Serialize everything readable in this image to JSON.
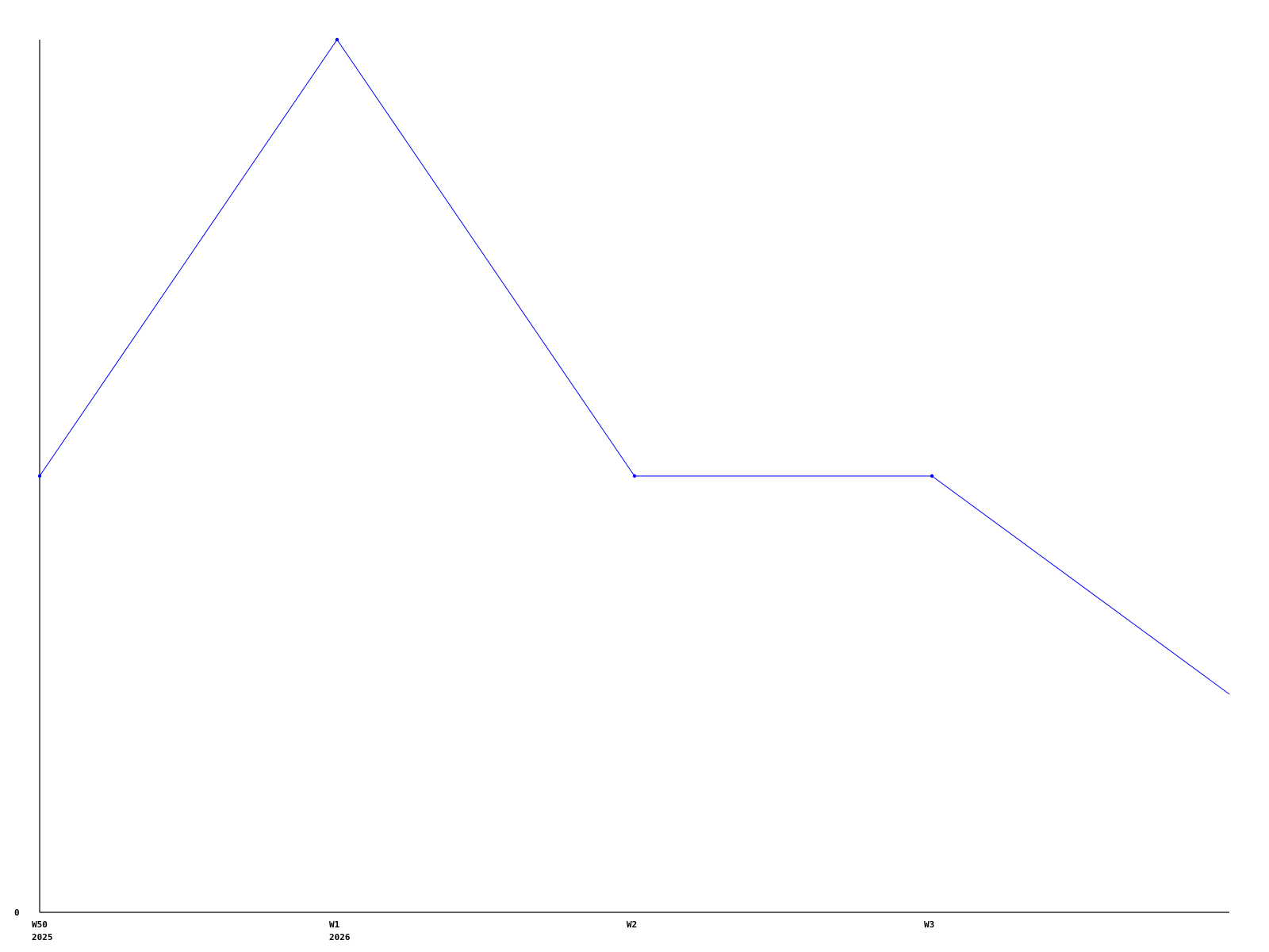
{
  "chart_data": {
    "type": "line",
    "title": "",
    "xlabel": "",
    "ylabel": "",
    "x_tick_labels": [
      {
        "line1": "W50",
        "line2": "2025"
      },
      {
        "line1": "W1",
        "line2": "2026"
      },
      {
        "line1": "W2",
        "line2": ""
      },
      {
        "line1": "W3",
        "line2": ""
      }
    ],
    "y_tick_labels": [
      "0"
    ],
    "ylim": [
      0,
      2
    ],
    "values": [
      1,
      2,
      1,
      1,
      0.5
    ],
    "grid": false,
    "line_color": "#0000ff",
    "axis_color": "#000000"
  }
}
